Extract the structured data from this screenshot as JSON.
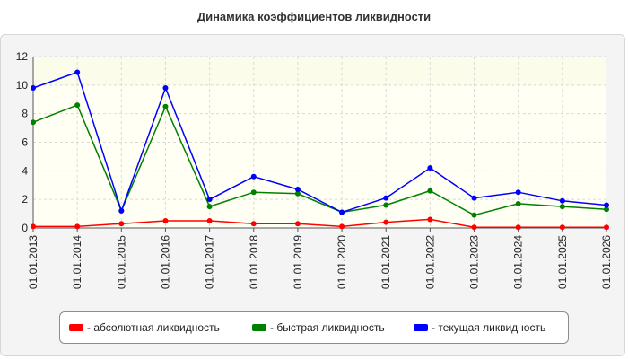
{
  "chart_data": {
    "type": "line",
    "title": "Динамика коэффициентов ликвидности",
    "xlabel": "",
    "ylabel": "",
    "categories": [
      "01.01.2013",
      "01.01.2014",
      "01.01.2015",
      "01.01.2016",
      "01.01.2017",
      "01.01.2018",
      "01.01.2019",
      "01.01.2020",
      "01.01.2021",
      "01.01.2022",
      "01.01.2023",
      "01.01.2024",
      "01.01.2025",
      "01.01.2026"
    ],
    "ylim": [
      0,
      12
    ],
    "yticks": [
      0,
      2,
      4,
      6,
      8,
      10,
      12
    ],
    "grid": true,
    "legend_position": "bottom",
    "series": [
      {
        "name": "- абсолютная ликвидность",
        "color": "#ff0000",
        "values": [
          0.1,
          0.1,
          0.3,
          0.5,
          0.5,
          0.3,
          0.3,
          0.1,
          0.4,
          0.6,
          0.05,
          0.05,
          0.05,
          0.05
        ]
      },
      {
        "name": "- быстрая ликвидность",
        "color": "#008000",
        "values": [
          7.4,
          8.6,
          1.2,
          8.5,
          1.5,
          2.5,
          2.4,
          1.1,
          1.6,
          2.6,
          0.9,
          1.7,
          1.5,
          1.3
        ]
      },
      {
        "name": "- текущая ликвидность",
        "color": "#0000ff",
        "values": [
          9.8,
          10.9,
          1.2,
          9.8,
          2.0,
          3.6,
          2.7,
          1.1,
          2.1,
          4.2,
          2.1,
          2.5,
          1.9,
          1.6
        ]
      }
    ]
  }
}
